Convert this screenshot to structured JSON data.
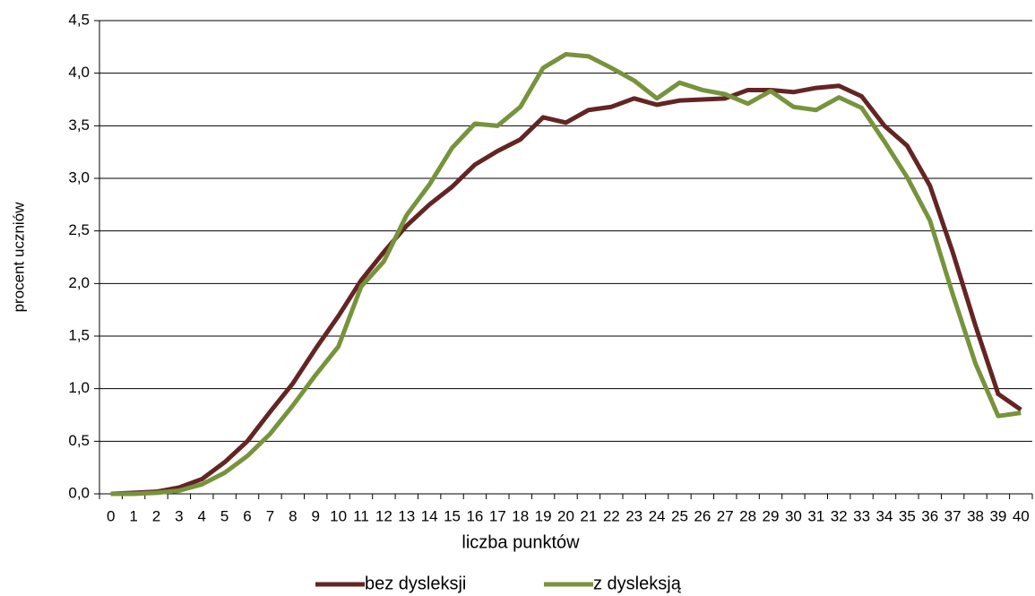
{
  "chart_data": {
    "type": "line",
    "x_label": "liczba punktów",
    "y_label": "procent uczniów",
    "categories": [
      "0",
      "1",
      "2",
      "3",
      "4",
      "5",
      "6",
      "7",
      "8",
      "9",
      "10",
      "11",
      "12",
      "13",
      "14",
      "15",
      "16",
      "17",
      "18",
      "19",
      "20",
      "21",
      "22",
      "23",
      "24",
      "25",
      "26",
      "27",
      "28",
      "29",
      "30",
      "31",
      "32",
      "33",
      "34",
      "35",
      "36",
      "37",
      "38",
      "39",
      "40"
    ],
    "series": [
      {
        "name": "bez dysleksji",
        "color": "#632523",
        "values": [
          0.0,
          0.01,
          0.02,
          0.06,
          0.14,
          0.3,
          0.5,
          0.78,
          1.05,
          1.38,
          1.69,
          2.03,
          2.3,
          2.55,
          2.75,
          2.92,
          3.13,
          3.26,
          3.37,
          3.58,
          3.53,
          3.65,
          3.68,
          3.76,
          3.7,
          3.74,
          3.75,
          3.76,
          3.84,
          3.84,
          3.82,
          3.86,
          3.88,
          3.78,
          3.5,
          3.31,
          2.93,
          2.3,
          1.6,
          0.95,
          0.8
        ]
      },
      {
        "name": "z dysleksją",
        "color": "#77933c",
        "values": [
          0.0,
          0.0,
          0.01,
          0.03,
          0.09,
          0.2,
          0.36,
          0.57,
          0.84,
          1.13,
          1.4,
          1.97,
          2.21,
          2.65,
          2.94,
          3.29,
          3.52,
          3.5,
          3.68,
          4.05,
          4.18,
          4.16,
          4.05,
          3.93,
          3.76,
          3.91,
          3.84,
          3.8,
          3.71,
          3.83,
          3.68,
          3.65,
          3.77,
          3.67,
          3.35,
          3.01,
          2.6,
          1.9,
          1.24,
          0.74,
          0.77
        ]
      }
    ],
    "ylim": [
      0,
      4.5
    ],
    "yticks": [
      {
        "value": 0,
        "label": "0,0"
      },
      {
        "value": 0.5,
        "label": "0,5"
      },
      {
        "value": 1,
        "label": "1,0"
      },
      {
        "value": 1.5,
        "label": "1,5"
      },
      {
        "value": 2,
        "label": "2,0"
      },
      {
        "value": 2.5,
        "label": "2,5"
      },
      {
        "value": 3,
        "label": "3,0"
      },
      {
        "value": 3.5,
        "label": "3,5"
      },
      {
        "value": 4,
        "label": "4,0"
      },
      {
        "value": 4.5,
        "label": "4,5"
      }
    ],
    "grid": true,
    "legend": "bottom"
  }
}
